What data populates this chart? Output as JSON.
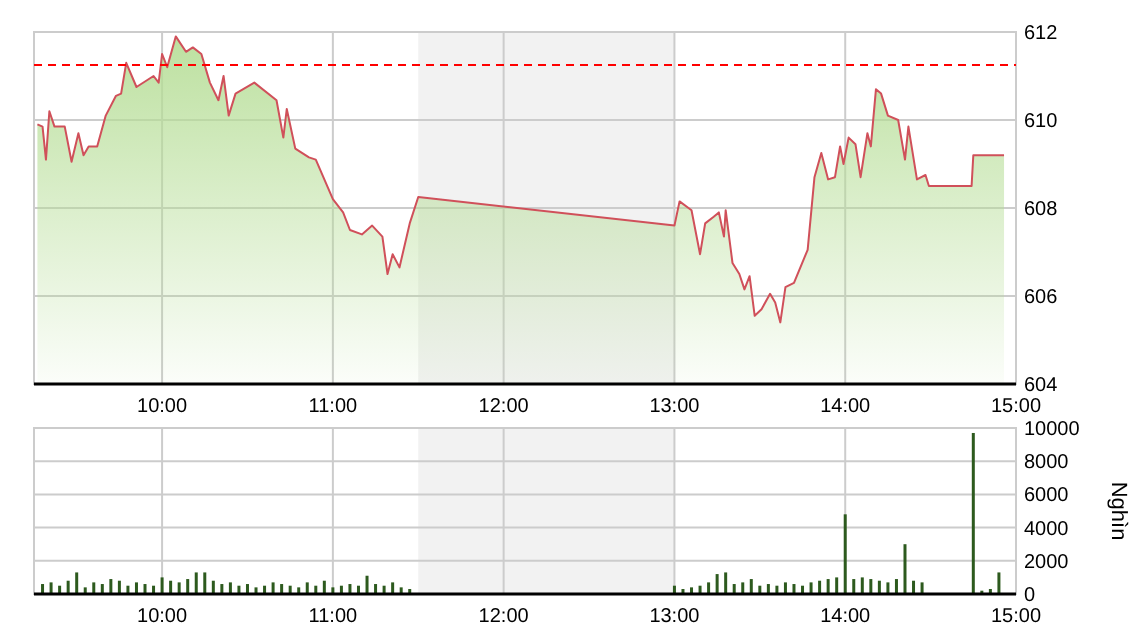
{
  "chart_data": [
    {
      "type": "area",
      "xlim": [
        9.25,
        15
      ],
      "ylim": [
        604,
        612
      ],
      "yticks": [
        604,
        606,
        608,
        610,
        612
      ],
      "xticks": [
        {
          "value": 10,
          "label": "10:00"
        },
        {
          "value": 11,
          "label": "11:00"
        },
        {
          "value": 12,
          "label": "12:00"
        },
        {
          "value": 13,
          "label": "13:00"
        },
        {
          "value": 14,
          "label": "14:00"
        },
        {
          "value": 15,
          "label": "15:00"
        }
      ],
      "grid": true,
      "bands": [
        {
          "axis": "x",
          "from": 11.5,
          "to": 13,
          "color": "#f2f2f2"
        }
      ],
      "ref_lines": [
        {
          "axis": "y",
          "value": 611.25,
          "color": "#ff0000",
          "line_style": "dashed"
        }
      ],
      "series": [
        {
          "color": "#b5dd95",
          "x": [
            9.27,
            9.3,
            9.32,
            9.34,
            9.37,
            9.43,
            9.47,
            9.51,
            9.54,
            9.57,
            9.62,
            9.67,
            9.73,
            9.76,
            9.79,
            9.85,
            9.95,
            9.98,
            10.0,
            10.03,
            10.08,
            10.14,
            10.18,
            10.23,
            10.28,
            10.33,
            10.36,
            10.39,
            10.43,
            10.54,
            10.67,
            10.71,
            10.73,
            10.78,
            10.86,
            10.9,
            11.0,
            11.06,
            11.1,
            11.17,
            11.23,
            11.29,
            11.32,
            11.35,
            11.39,
            11.45,
            11.5,
            13.0,
            13.03,
            13.1,
            13.15,
            13.18,
            13.23,
            13.26,
            13.29,
            13.3,
            13.34,
            13.38,
            13.41,
            13.44,
            13.47,
            13.51,
            13.56,
            13.59,
            13.62,
            13.65,
            13.7,
            13.78,
            13.82,
            13.86,
            13.9,
            13.94,
            13.97,
            13.99,
            14.02,
            14.06,
            14.09,
            14.13,
            14.15,
            14.18,
            14.21,
            14.25,
            14.31,
            14.35,
            14.37,
            14.42,
            14.47,
            14.49,
            14.74,
            14.75,
            14.93
          ],
          "values": [
            609.9,
            609.85,
            609.1,
            610.2,
            609.85,
            609.85,
            609.05,
            609.7,
            609.2,
            609.4,
            609.4,
            610.1,
            610.55,
            610.6,
            611.3,
            610.75,
            611.0,
            610.85,
            611.5,
            611.2,
            611.9,
            611.55,
            611.65,
            611.5,
            610.85,
            610.45,
            611.0,
            610.1,
            610.6,
            610.85,
            610.45,
            609.6,
            610.25,
            609.35,
            609.15,
            609.1,
            608.2,
            607.9,
            607.5,
            607.4,
            607.6,
            607.35,
            606.5,
            606.95,
            606.65,
            607.65,
            608.25,
            607.6,
            608.15,
            607.95,
            606.95,
            607.65,
            607.8,
            607.9,
            607.35,
            607.95,
            606.75,
            606.5,
            606.15,
            606.45,
            605.55,
            605.7,
            606.05,
            605.85,
            605.4,
            606.2,
            606.3,
            607.05,
            608.7,
            609.25,
            608.65,
            608.7,
            609.4,
            609.0,
            609.6,
            609.45,
            608.7,
            609.7,
            609.4,
            610.7,
            610.6,
            610.1,
            610.0,
            609.1,
            609.85,
            608.65,
            608.75,
            608.5,
            608.5,
            609.2,
            609.2
          ]
        }
      ]
    },
    {
      "type": "bar",
      "xlim": [
        9.25,
        15
      ],
      "ylim": [
        0,
        10000
      ],
      "yticks": [
        0,
        2000,
        4000,
        6000,
        8000,
        10000
      ],
      "ylabel": "Nghìn",
      "xticks": [
        {
          "value": 10,
          "label": "10:00"
        },
        {
          "value": 11,
          "label": "11:00"
        },
        {
          "value": 12,
          "label": "12:00"
        },
        {
          "value": 13,
          "label": "13:00"
        },
        {
          "value": 14,
          "label": "14:00"
        },
        {
          "value": 15,
          "label": "15:00"
        }
      ],
      "grid": true,
      "bands": [
        {
          "axis": "x",
          "from": 11.5,
          "to": 13,
          "color": "#f2f2f2"
        }
      ],
      "series": [
        {
          "color": "#2d5a1e",
          "x": [
            9.3,
            9.35,
            9.4,
            9.45,
            9.5,
            9.55,
            9.6,
            9.65,
            9.7,
            9.75,
            9.8,
            9.85,
            9.9,
            9.95,
            10.0,
            10.05,
            10.1,
            10.15,
            10.2,
            10.25,
            10.3,
            10.35,
            10.4,
            10.45,
            10.5,
            10.55,
            10.6,
            10.65,
            10.7,
            10.75,
            10.8,
            10.85,
            10.9,
            10.95,
            11.0,
            11.05,
            11.1,
            11.15,
            11.2,
            11.25,
            11.3,
            11.35,
            11.4,
            11.45,
            13.0,
            13.05,
            13.1,
            13.15,
            13.2,
            13.25,
            13.3,
            13.35,
            13.4,
            13.45,
            13.5,
            13.55,
            13.6,
            13.65,
            13.7,
            13.75,
            13.8,
            13.85,
            13.9,
            13.95,
            14.0,
            14.05,
            14.1,
            14.15,
            14.2,
            14.25,
            14.3,
            14.35,
            14.4,
            14.45,
            14.75,
            14.8,
            14.85,
            14.9
          ],
          "values": [
            600,
            700,
            500,
            800,
            1300,
            400,
            700,
            600,
            900,
            800,
            500,
            700,
            600,
            500,
            1000,
            800,
            700,
            900,
            1300,
            1300,
            800,
            600,
            700,
            500,
            600,
            400,
            500,
            700,
            600,
            500,
            400,
            700,
            500,
            800,
            400,
            500,
            600,
            500,
            1100,
            600,
            500,
            700,
            400,
            300,
            500,
            300,
            400,
            500,
            700,
            1200,
            1300,
            600,
            700,
            900,
            500,
            600,
            500,
            700,
            600,
            500,
            700,
            800,
            900,
            1000,
            4800,
            900,
            1000,
            900,
            800,
            700,
            900,
            3000,
            800,
            700,
            9700,
            200,
            300,
            1300
          ]
        }
      ]
    }
  ]
}
